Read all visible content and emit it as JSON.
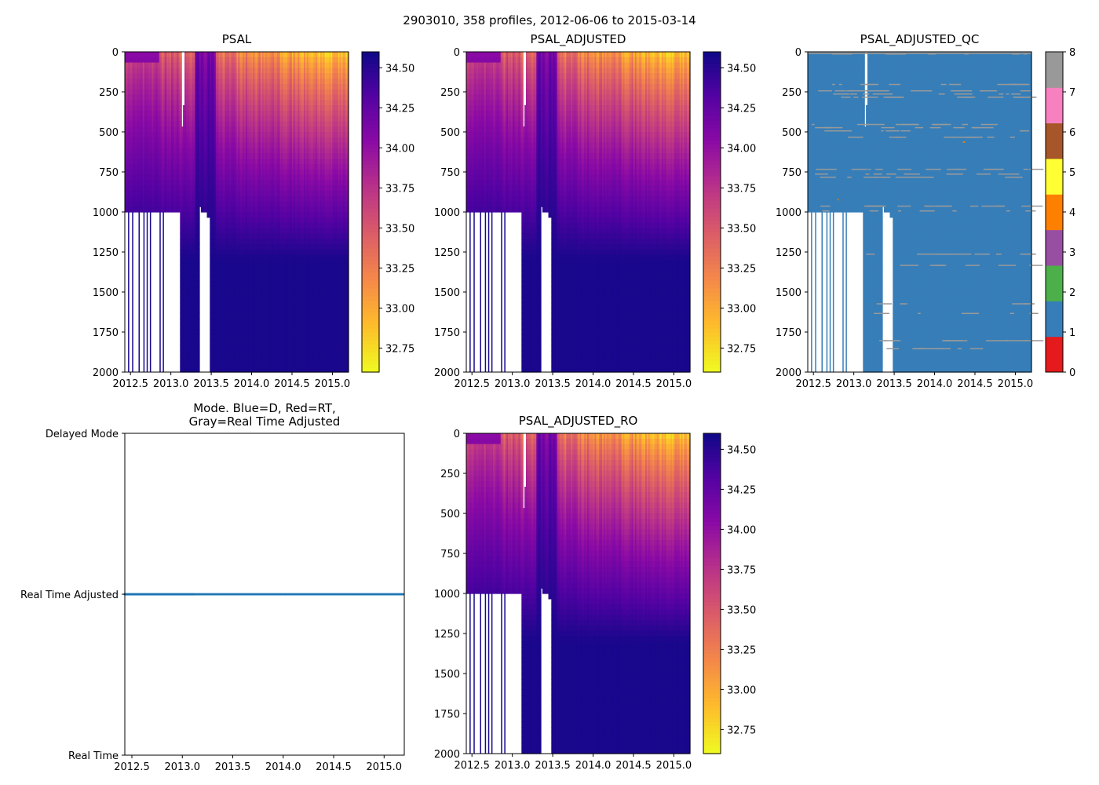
{
  "figure": {
    "suptitle": "2903010, 358 profiles, 2012-06-06 to 2015-03-14"
  },
  "chart_data": [
    {
      "id": "psal",
      "type": "heatmap",
      "title": "PSAL",
      "xlabel": "",
      "ylabel": "",
      "xlim": [
        2012.43,
        2015.2
      ],
      "ylim": [
        2000,
        0
      ],
      "xticks": [
        "2012.5",
        "2013.0",
        "2013.5",
        "2014.0",
        "2014.5",
        "2015.0"
      ],
      "xtick_values": [
        2012.5,
        2013.0,
        2013.5,
        2014.0,
        2014.5,
        2015.0
      ],
      "yticks": [
        "0",
        "250",
        "500",
        "750",
        "1000",
        "1250",
        "1500",
        "1750",
        "2000"
      ],
      "ytick_values": [
        0,
        250,
        500,
        750,
        1000,
        1250,
        1500,
        1750,
        2000
      ],
      "colormap": "plasma_r",
      "colorbar": {
        "range": [
          32.6,
          34.6
        ],
        "ticks": [
          "32.75",
          "33.00",
          "33.25",
          "33.50",
          "33.75",
          "34.00",
          "34.25",
          "34.50"
        ],
        "tick_values": [
          32.75,
          33.0,
          33.25,
          33.5,
          33.75,
          34.0,
          34.25,
          34.5
        ]
      },
      "description": "Salinity vs pressure and time; fresh (~32.7) surface water late 2014-2015, saline (~34.5) at depth; profiles before 2013.1 only reach ~1000 dbar; gap near 2013.15 (0-480 dbar) and 2013.35-2013.5 below ~1000 dbar"
    },
    {
      "id": "psal-adjusted",
      "type": "heatmap",
      "title": "PSAL_ADJUSTED",
      "xlim": [
        2012.43,
        2015.2
      ],
      "ylim": [
        2000,
        0
      ],
      "xticks": [
        "2012.5",
        "2013.0",
        "2013.5",
        "2014.0",
        "2014.5",
        "2015.0"
      ],
      "xtick_values": [
        2012.5,
        2013.0,
        2013.5,
        2014.0,
        2014.5,
        2015.0
      ],
      "yticks": [
        "0",
        "250",
        "500",
        "750",
        "1000",
        "1250",
        "1500",
        "1750",
        "2000"
      ],
      "ytick_values": [
        0,
        250,
        500,
        750,
        1000,
        1250,
        1500,
        1750,
        2000
      ],
      "colormap": "plasma_r",
      "colorbar": {
        "range": [
          32.6,
          34.6
        ],
        "ticks": [
          "32.75",
          "33.00",
          "33.25",
          "33.50",
          "33.75",
          "34.00",
          "34.25",
          "34.50"
        ],
        "tick_values": [
          32.75,
          33.0,
          33.25,
          33.5,
          33.75,
          34.0,
          34.25,
          34.5
        ]
      }
    },
    {
      "id": "psal-adjusted-qc",
      "type": "heatmap",
      "title": "PSAL_ADJUSTED_QC",
      "xlim": [
        2012.43,
        2015.2
      ],
      "ylim": [
        2000,
        0
      ],
      "xticks": [
        "2012.5",
        "2013.0",
        "2013.5",
        "2014.0",
        "2014.5",
        "2015.0"
      ],
      "xtick_values": [
        2012.5,
        2013.0,
        2013.5,
        2014.0,
        2014.5,
        2015.0
      ],
      "yticks": [
        "0",
        "250",
        "500",
        "750",
        "1000",
        "1250",
        "1500",
        "1750",
        "2000"
      ],
      "ytick_values": [
        0,
        250,
        500,
        750,
        1000,
        1250,
        1500,
        1750,
        2000
      ],
      "colorbar": {
        "range": [
          0,
          8
        ],
        "ticks": [
          "0",
          "1",
          "2",
          "3",
          "4",
          "5",
          "6",
          "7",
          "8"
        ],
        "tick_values": [
          0,
          1,
          2,
          3,
          4,
          5,
          6,
          7,
          8
        ],
        "colors": [
          "#e41a1c",
          "#377eb8",
          "#4daf4a",
          "#984ea3",
          "#ff7f00",
          "#ffff33",
          "#a65628",
          "#f781bf",
          "#999999"
        ]
      },
      "dominant_value": 1,
      "secondary_value": 8,
      "gray_band_depths": [
        10,
        200,
        240,
        260,
        280,
        450,
        470,
        490,
        530,
        730,
        760,
        780,
        960,
        990,
        1260,
        1330,
        1570,
        1630,
        1800,
        1850
      ],
      "description": "Mostly QC flag 1 (blue) with scattered flag 8 (gray) horizontal streaks; a couple of isolated flag 4 (orange) points"
    },
    {
      "id": "mode",
      "type": "scatter",
      "title": "Mode. Blue=D, Red=RT,\nGray=Real Time Adjusted",
      "xlim": [
        2012.43,
        2015.2
      ],
      "xticks": [
        "2012.5",
        "2013.0",
        "2013.5",
        "2014.0",
        "2014.5",
        "2015.0"
      ],
      "xtick_values": [
        2012.5,
        2013.0,
        2013.5,
        2014.0,
        2014.5,
        2015.0
      ],
      "yticks": [
        "Real Time",
        "Real Time Adjusted",
        "Delayed Mode"
      ],
      "ytick_values": [
        0,
        1,
        2
      ],
      "ylim": [
        0,
        2
      ],
      "series": [
        {
          "name": "Real Time Adjusted",
          "color": "#1f77b4",
          "y": 1,
          "x_start": 2012.43,
          "x_end": 2015.2,
          "dense_until": 2013.12,
          "count": 358
        }
      ]
    },
    {
      "id": "psal-adjusted-ro",
      "type": "heatmap",
      "title": "PSAL_ADJUSTED_RO",
      "xlim": [
        2012.43,
        2015.2
      ],
      "ylim": [
        2000,
        0
      ],
      "xticks": [
        "2012.5",
        "2013.0",
        "2013.5",
        "2014.0",
        "2014.5",
        "2015.0"
      ],
      "xtick_values": [
        2012.5,
        2013.0,
        2013.5,
        2014.0,
        2014.5,
        2015.0
      ],
      "yticks": [
        "0",
        "250",
        "500",
        "750",
        "1000",
        "1250",
        "1500",
        "1750",
        "2000"
      ],
      "ytick_values": [
        0,
        250,
        500,
        750,
        1000,
        1250,
        1500,
        1750,
        2000
      ],
      "colormap": "plasma_r",
      "colorbar": {
        "range": [
          32.6,
          34.6
        ],
        "ticks": [
          "32.75",
          "33.00",
          "33.25",
          "33.50",
          "33.75",
          "34.00",
          "34.25",
          "34.50"
        ],
        "tick_values": [
          32.75,
          33.0,
          33.25,
          33.5,
          33.75,
          34.0,
          34.25,
          34.5
        ]
      }
    }
  ]
}
